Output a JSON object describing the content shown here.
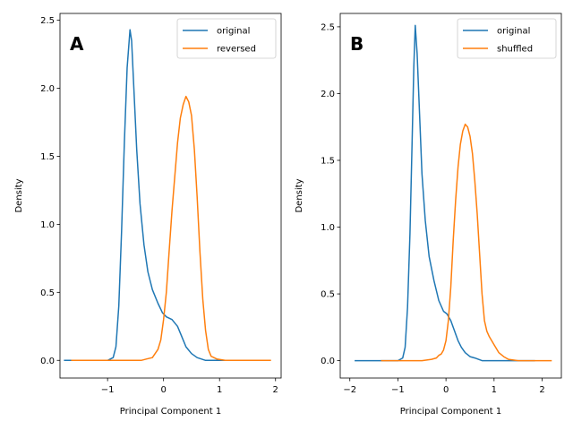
{
  "chart_data": [
    {
      "type": "line",
      "panel_label": "A",
      "xlabel": "Principal Component 1",
      "ylabel": "Density",
      "xlim": [
        -1.85,
        2.1
      ],
      "ylim": [
        -0.13,
        2.55
      ],
      "xticks": [
        -1,
        0,
        1,
        2
      ],
      "xtick_labels": [
        "−1",
        "0",
        "1",
        "2"
      ],
      "yticks": [
        0.0,
        0.5,
        1.0,
        1.5,
        2.0,
        2.5
      ],
      "ytick_labels": [
        "0.0",
        "0.5",
        "1.0",
        "1.5",
        "2.0",
        "2.5"
      ],
      "legend_position": "top-right",
      "grid": false,
      "series": [
        {
          "name": "original",
          "color": "#1f77b4",
          "points": [
            [
              -1.78,
              0.0
            ],
            [
              -1.2,
              0.0
            ],
            [
              -1.0,
              0.0
            ],
            [
              -0.9,
              0.02
            ],
            [
              -0.85,
              0.1
            ],
            [
              -0.8,
              0.4
            ],
            [
              -0.75,
              0.95
            ],
            [
              -0.7,
              1.6
            ],
            [
              -0.65,
              2.15
            ],
            [
              -0.6,
              2.43
            ],
            [
              -0.57,
              2.35
            ],
            [
              -0.53,
              2.0
            ],
            [
              -0.48,
              1.55
            ],
            [
              -0.42,
              1.15
            ],
            [
              -0.35,
              0.85
            ],
            [
              -0.28,
              0.65
            ],
            [
              -0.2,
              0.52
            ],
            [
              -0.1,
              0.42
            ],
            [
              -0.02,
              0.35
            ],
            [
              0.05,
              0.32
            ],
            [
              0.15,
              0.3
            ],
            [
              0.25,
              0.25
            ],
            [
              0.32,
              0.18
            ],
            [
              0.4,
              0.1
            ],
            [
              0.5,
              0.05
            ],
            [
              0.6,
              0.02
            ],
            [
              0.75,
              0.0
            ],
            [
              1.0,
              0.0
            ],
            [
              1.5,
              0.0
            ],
            [
              1.8,
              0.0
            ]
          ]
        },
        {
          "name": "reversed",
          "color": "#ff7f0e",
          "points": [
            [
              -1.65,
              0.0
            ],
            [
              -1.2,
              0.0
            ],
            [
              -0.6,
              0.0
            ],
            [
              -0.4,
              0.0
            ],
            [
              -0.3,
              0.01
            ],
            [
              -0.2,
              0.02
            ],
            [
              -0.1,
              0.08
            ],
            [
              -0.05,
              0.15
            ],
            [
              0.0,
              0.3
            ],
            [
              0.05,
              0.5
            ],
            [
              0.1,
              0.8
            ],
            [
              0.15,
              1.1
            ],
            [
              0.2,
              1.35
            ],
            [
              0.25,
              1.6
            ],
            [
              0.3,
              1.78
            ],
            [
              0.35,
              1.88
            ],
            [
              0.4,
              1.94
            ],
            [
              0.45,
              1.9
            ],
            [
              0.5,
              1.8
            ],
            [
              0.55,
              1.55
            ],
            [
              0.6,
              1.2
            ],
            [
              0.65,
              0.8
            ],
            [
              0.7,
              0.45
            ],
            [
              0.75,
              0.22
            ],
            [
              0.8,
              0.08
            ],
            [
              0.85,
              0.03
            ],
            [
              0.95,
              0.01
            ],
            [
              1.1,
              0.0
            ],
            [
              1.5,
              0.0
            ],
            [
              1.92,
              0.0
            ]
          ]
        }
      ]
    },
    {
      "type": "line",
      "panel_label": "B",
      "xlabel": "Principal Component 1",
      "ylabel": "Density",
      "xlim": [
        -2.2,
        2.4
      ],
      "ylim": [
        -0.13,
        2.6
      ],
      "xticks": [
        -2,
        -1,
        0,
        1,
        2
      ],
      "xtick_labels": [
        "−2",
        "−1",
        "0",
        "1",
        "2"
      ],
      "yticks": [
        0.0,
        0.5,
        1.0,
        1.5,
        2.0,
        2.5
      ],
      "ytick_labels": [
        "0.0",
        "0.5",
        "1.0",
        "1.5",
        "2.0",
        "2.5"
      ],
      "legend_position": "top-right",
      "grid": false,
      "series": [
        {
          "name": "original",
          "color": "#1f77b4",
          "points": [
            [
              -1.9,
              0.0
            ],
            [
              -1.3,
              0.0
            ],
            [
              -1.0,
              0.0
            ],
            [
              -0.9,
              0.02
            ],
            [
              -0.85,
              0.1
            ],
            [
              -0.8,
              0.4
            ],
            [
              -0.75,
              0.95
            ],
            [
              -0.7,
              1.7
            ],
            [
              -0.67,
              2.2
            ],
            [
              -0.64,
              2.51
            ],
            [
              -0.6,
              2.3
            ],
            [
              -0.55,
              1.85
            ],
            [
              -0.5,
              1.4
            ],
            [
              -0.43,
              1.05
            ],
            [
              -0.35,
              0.78
            ],
            [
              -0.25,
              0.6
            ],
            [
              -0.15,
              0.45
            ],
            [
              -0.05,
              0.37
            ],
            [
              0.02,
              0.35
            ],
            [
              0.1,
              0.3
            ],
            [
              0.18,
              0.22
            ],
            [
              0.25,
              0.15
            ],
            [
              0.32,
              0.1
            ],
            [
              0.4,
              0.06
            ],
            [
              0.5,
              0.03
            ],
            [
              0.6,
              0.02
            ],
            [
              0.75,
              0.0
            ],
            [
              1.0,
              0.0
            ],
            [
              1.5,
              0.0
            ],
            [
              1.85,
              0.0
            ]
          ]
        },
        {
          "name": "shuffled",
          "color": "#ff7f0e",
          "points": [
            [
              -1.35,
              0.0
            ],
            [
              -0.8,
              0.0
            ],
            [
              -0.5,
              0.0
            ],
            [
              -0.3,
              0.01
            ],
            [
              -0.2,
              0.02
            ],
            [
              -0.15,
              0.04
            ],
            [
              -0.1,
              0.05
            ],
            [
              -0.05,
              0.08
            ],
            [
              0.0,
              0.15
            ],
            [
              0.05,
              0.3
            ],
            [
              0.1,
              0.55
            ],
            [
              0.15,
              0.9
            ],
            [
              0.2,
              1.2
            ],
            [
              0.25,
              1.45
            ],
            [
              0.3,
              1.62
            ],
            [
              0.35,
              1.72
            ],
            [
              0.4,
              1.77
            ],
            [
              0.45,
              1.75
            ],
            [
              0.5,
              1.68
            ],
            [
              0.55,
              1.55
            ],
            [
              0.6,
              1.35
            ],
            [
              0.65,
              1.1
            ],
            [
              0.7,
              0.8
            ],
            [
              0.75,
              0.5
            ],
            [
              0.8,
              0.3
            ],
            [
              0.85,
              0.22
            ],
            [
              0.9,
              0.18
            ],
            [
              1.0,
              0.12
            ],
            [
              1.1,
              0.06
            ],
            [
              1.2,
              0.03
            ],
            [
              1.3,
              0.01
            ],
            [
              1.5,
              0.0
            ],
            [
              2.0,
              0.0
            ],
            [
              2.2,
              0.0
            ]
          ]
        }
      ]
    }
  ]
}
